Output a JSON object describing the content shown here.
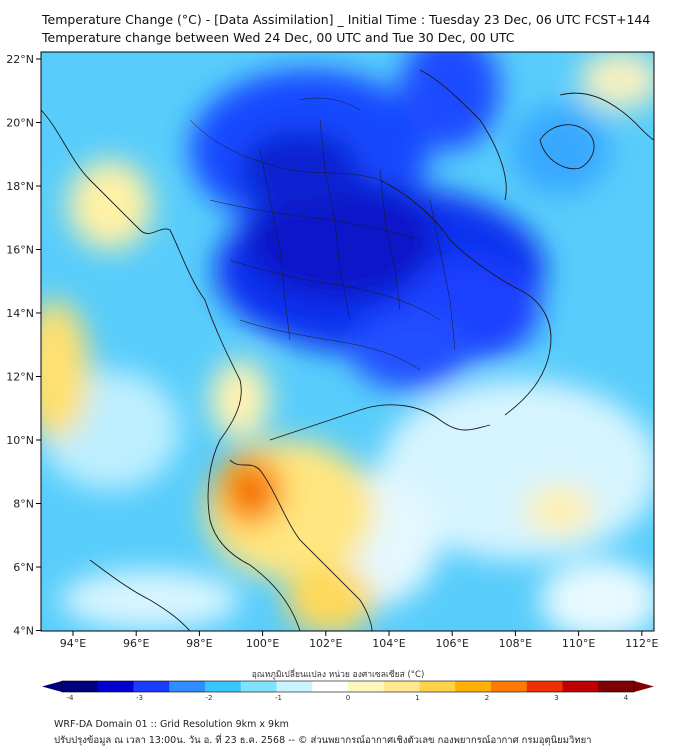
{
  "header": {
    "title_line1": "Temperature Change (°C) - [Data Assimilation] _ Initial Time : Tuesday 23 Dec, 06 UTC FCST+144",
    "title_line2": "Temperature change between Wed 24 Dec, 00 UTC and Tue 30 Dec, 00 UTC"
  },
  "map": {
    "lat_labels": [
      "22°N",
      "20°N",
      "18°N",
      "16°N",
      "14°N",
      "12°N",
      "10°N",
      "8°N",
      "6°N",
      "4°N"
    ],
    "lon_labels": [
      "94°E",
      "96°E",
      "98°E",
      "100°E",
      "102°E",
      "104°E",
      "106°E",
      "108°E",
      "110°E",
      "112°E"
    ]
  },
  "colorbar": {
    "title": "อุณหภูมิเปลี่ยนแปลง หน่วย องศาเซลเซียส (°C)",
    "tick_labels": [
      "-4",
      "-3",
      "-2",
      "-1",
      "0",
      "1",
      "2",
      "3",
      "4"
    ],
    "colors": [
      "#00007f",
      "#0000d0",
      "#1a3cff",
      "#2f8dff",
      "#38c6ff",
      "#7fe3ff",
      "#c9f3ff",
      "#ffffff",
      "#fff7c0",
      "#ffe890",
      "#ffd24a",
      "#ffb000",
      "#ff7a00",
      "#f03000",
      "#c00000",
      "#7f0000"
    ]
  },
  "footer": {
    "line1": "WRF-DA Domain 01 :: Grid Resolution 9km x 9km",
    "line2": "ปรับปรุงข้อมูล ณ เวลา 13:00น. วัน อ. ที่ 23 ธ.ค. 2568 -- © ส่วนพยากรณ์อากาศเชิงตัวเลข กองพยากรณ์อากาศ กรมอุตุนิยมวิทยา"
  }
}
